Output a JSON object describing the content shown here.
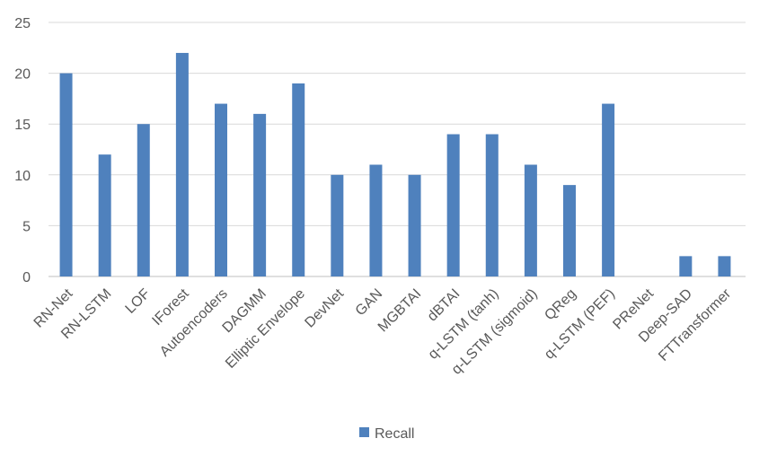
{
  "chart_data": {
    "type": "bar",
    "categories": [
      "RN-Net",
      "RN-LSTM",
      "LOF",
      "IForest",
      "Autoencoders",
      "DAGMM",
      "Elliptic Envelope",
      "DevNet",
      "GAN",
      "MGBTAI",
      "dBTAI",
      "q-LSTM (tanh)",
      "q-LSTM (sigmoid)",
      "QReg",
      "q-LSTM (PEF)",
      "PReNet",
      "Deep-SAD",
      "FTTransformer"
    ],
    "series": [
      {
        "name": "Recall",
        "values": [
          20,
          12,
          15,
          22,
          17,
          16,
          19,
          10,
          11,
          10,
          14,
          14,
          11,
          9,
          17,
          0,
          2,
          2
        ]
      }
    ],
    "ylim": [
      0,
      25
    ],
    "yticks": [
      "0",
      "5",
      "10",
      "15",
      "20",
      "25"
    ],
    "grid": true,
    "legend_position": "bottom",
    "colors": {
      "bar": "#4f81bd"
    }
  }
}
